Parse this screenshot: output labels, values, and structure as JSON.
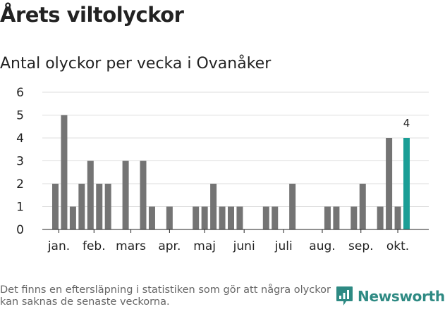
{
  "header": {
    "title": "Årets viltolyckor",
    "subtitle": "Antal olyckor per vecka i Ovanåker"
  },
  "footer": {
    "note": "Det finns en eftersläpning i statistiken som gör att några olyckor kan saknas de senaste veckorna.",
    "brand": "Newsworthy"
  },
  "colors": {
    "bar": "#747474",
    "highlight": "#1a9e96",
    "grid": "#dddddd",
    "axis": "#222222",
    "brand": "#2e8a83"
  },
  "chart_data": {
    "type": "bar",
    "title": "Antal olyckor per vecka i Ovanåker",
    "xlabel": "",
    "ylabel": "",
    "ylim": [
      0,
      6
    ],
    "yticks": [
      "0",
      "1",
      "2",
      "3",
      "4",
      "5",
      "6"
    ],
    "weeks": [
      1,
      2,
      3,
      4,
      5,
      6,
      7,
      8,
      9,
      10,
      11,
      12,
      13,
      14,
      15,
      16,
      17,
      18,
      19,
      20,
      21,
      22,
      23,
      24,
      25,
      26,
      27,
      28,
      29,
      30,
      31,
      32,
      33,
      34,
      35,
      36,
      37,
      38,
      39,
      40,
      41
    ],
    "values": [
      2,
      5,
      1,
      2,
      3,
      2,
      2,
      0,
      3,
      0,
      3,
      1,
      0,
      1,
      0,
      0,
      1,
      1,
      2,
      1,
      1,
      1,
      0,
      0,
      1,
      1,
      0,
      2,
      0,
      0,
      0,
      1,
      1,
      0,
      1,
      2,
      0,
      1,
      4,
      1,
      4
    ],
    "highlight_week": 41,
    "highlight_label": "4",
    "months": [
      {
        "label": "jan.",
        "week": 1.4
      },
      {
        "label": "feb.",
        "week": 5.4
      },
      {
        "label": "mars",
        "week": 9.6
      },
      {
        "label": "apr.",
        "week": 14.0
      },
      {
        "label": "maj",
        "week": 18.0
      },
      {
        "label": "juni",
        "week": 22.5
      },
      {
        "label": "juli",
        "week": 27.0
      },
      {
        "label": "aug.",
        "week": 31.4
      },
      {
        "label": "sep.",
        "week": 35.8
      },
      {
        "label": "okt.",
        "week": 40.0
      }
    ]
  }
}
